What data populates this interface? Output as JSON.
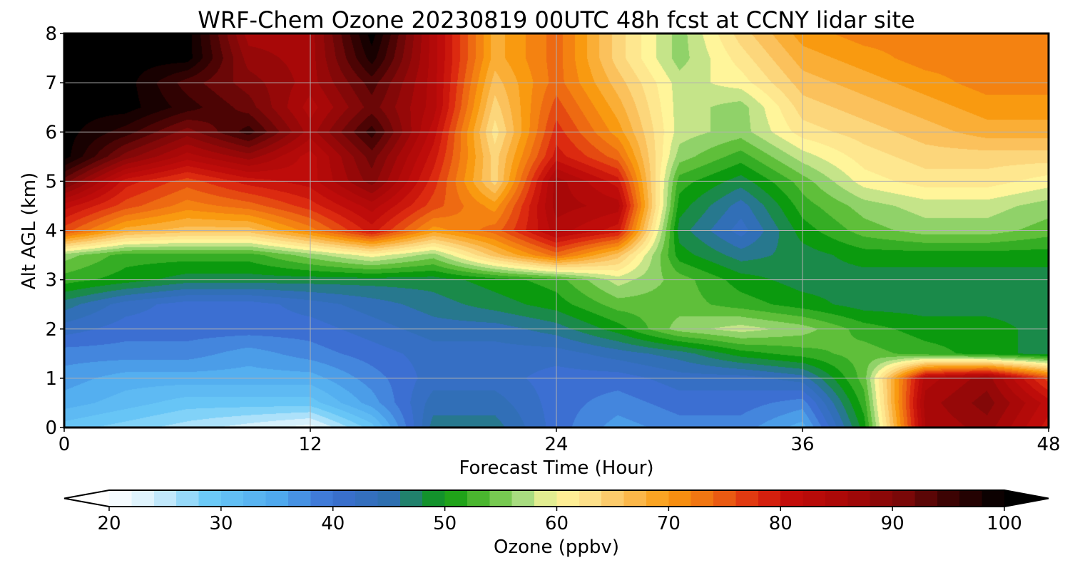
{
  "chart_data": {
    "type": "heatmap",
    "title": "WRF-Chem Ozone  20230819 00UTC 48h fcst at CCNY lidar site",
    "xlabel": "Forecast Time (Hour)",
    "ylabel": "Alt AGL (km)",
    "xlim": [
      0,
      48
    ],
    "ylim": [
      0,
      8
    ],
    "xticks": [
      0,
      12,
      24,
      36,
      48
    ],
    "yticks": [
      0,
      1,
      2,
      3,
      4,
      5,
      6,
      7,
      8
    ],
    "grid": true,
    "x": [
      0,
      3,
      6,
      9,
      12,
      15,
      18,
      21,
      24,
      27,
      30,
      33,
      36,
      39,
      42,
      45,
      48
    ],
    "y": [
      0,
      0.5,
      1,
      1.5,
      2,
      2.5,
      3,
      3.5,
      4,
      4.5,
      5,
      5.5,
      6,
      6.5,
      7,
      7.5,
      8
    ],
    "z": [
      [
        30,
        28,
        26,
        24,
        22,
        30,
        46,
        46,
        40,
        36,
        38,
        38,
        34,
        50,
        85,
        88,
        80
      ],
      [
        34,
        32,
        30,
        30,
        30,
        36,
        44,
        44,
        40,
        38,
        40,
        40,
        38,
        52,
        86,
        90,
        82
      ],
      [
        36,
        34,
        34,
        34,
        34,
        38,
        42,
        42,
        40,
        40,
        42,
        42,
        44,
        54,
        84,
        88,
        76
      ],
      [
        38,
        38,
        38,
        36,
        38,
        40,
        42,
        42,
        42,
        44,
        46,
        50,
        52,
        54,
        52,
        50,
        48
      ],
      [
        42,
        40,
        40,
        40,
        40,
        42,
        44,
        44,
        46,
        50,
        56,
        58,
        56,
        52,
        50,
        50,
        48
      ],
      [
        46,
        42,
        40,
        40,
        42,
        44,
        46,
        48,
        50,
        54,
        54,
        52,
        50,
        48,
        48,
        48,
        48
      ],
      [
        52,
        50,
        48,
        48,
        48,
        48,
        48,
        50,
        52,
        58,
        54,
        50,
        48,
        48,
        48,
        48,
        48
      ],
      [
        56,
        52,
        52,
        52,
        56,
        60,
        56,
        66,
        74,
        66,
        50,
        46,
        48,
        50,
        50,
        50,
        50
      ],
      [
        76,
        68,
        66,
        66,
        72,
        80,
        70,
        74,
        84,
        80,
        48,
        42,
        50,
        54,
        56,
        56,
        54
      ],
      [
        82,
        76,
        72,
        74,
        78,
        84,
        76,
        70,
        86,
        84,
        50,
        44,
        52,
        56,
        58,
        58,
        56
      ],
      [
        92,
        80,
        76,
        80,
        82,
        90,
        78,
        64,
        86,
        80,
        52,
        48,
        54,
        60,
        62,
        62,
        60
      ],
      [
        100,
        90,
        84,
        88,
        82,
        92,
        80,
        64,
        80,
        74,
        56,
        52,
        58,
        62,
        64,
        64,
        64
      ],
      [
        100,
        96,
        90,
        96,
        86,
        96,
        82,
        62,
        78,
        70,
        58,
        56,
        62,
        64,
        66,
        68,
        68
      ],
      [
        100,
        100,
        96,
        92,
        84,
        92,
        84,
        64,
        76,
        68,
        58,
        56,
        64,
        66,
        68,
        70,
        70
      ],
      [
        100,
        100,
        94,
        90,
        86,
        94,
        84,
        66,
        74,
        66,
        58,
        60,
        66,
        68,
        70,
        72,
        72
      ],
      [
        100,
        100,
        100,
        88,
        86,
        98,
        84,
        68,
        74,
        64,
        56,
        62,
        68,
        70,
        72,
        72,
        72
      ],
      [
        100,
        100,
        100,
        86,
        86,
        100,
        84,
        68,
        74,
        64,
        56,
        64,
        70,
        72,
        72,
        72,
        72
      ]
    ],
    "colorbar": {
      "label": "Ozone  (ppbv)",
      "min": 20,
      "max": 100,
      "ticks": [
        20,
        30,
        40,
        50,
        60,
        70,
        80,
        90,
        100
      ],
      "extend": "both",
      "colors": [
        {
          "v": 20,
          "c": "#ffffff"
        },
        {
          "v": 24,
          "c": "#d6f0fc"
        },
        {
          "v": 29,
          "c": "#6ccaf7"
        },
        {
          "v": 35,
          "c": "#4fa9ee"
        },
        {
          "v": 40,
          "c": "#3c6fd2"
        },
        {
          "v": 45,
          "c": "#2e6fb0"
        },
        {
          "v": 48,
          "c": "#1a8a4a"
        },
        {
          "v": 50,
          "c": "#0b9a0e"
        },
        {
          "v": 54,
          "c": "#5fbf3a"
        },
        {
          "v": 57,
          "c": "#a8dc80"
        },
        {
          "v": 60,
          "c": "#fff59a"
        },
        {
          "v": 63,
          "c": "#fde08a"
        },
        {
          "v": 66,
          "c": "#fbc15c"
        },
        {
          "v": 70,
          "c": "#f99a10"
        },
        {
          "v": 74,
          "c": "#ee6a12"
        },
        {
          "v": 78,
          "c": "#dc2a10"
        },
        {
          "v": 81,
          "c": "#c30d0a"
        },
        {
          "v": 86,
          "c": "#a80808"
        },
        {
          "v": 91,
          "c": "#7a0808"
        },
        {
          "v": 95,
          "c": "#3c0303"
        },
        {
          "v": 100,
          "c": "#000000"
        }
      ]
    }
  }
}
